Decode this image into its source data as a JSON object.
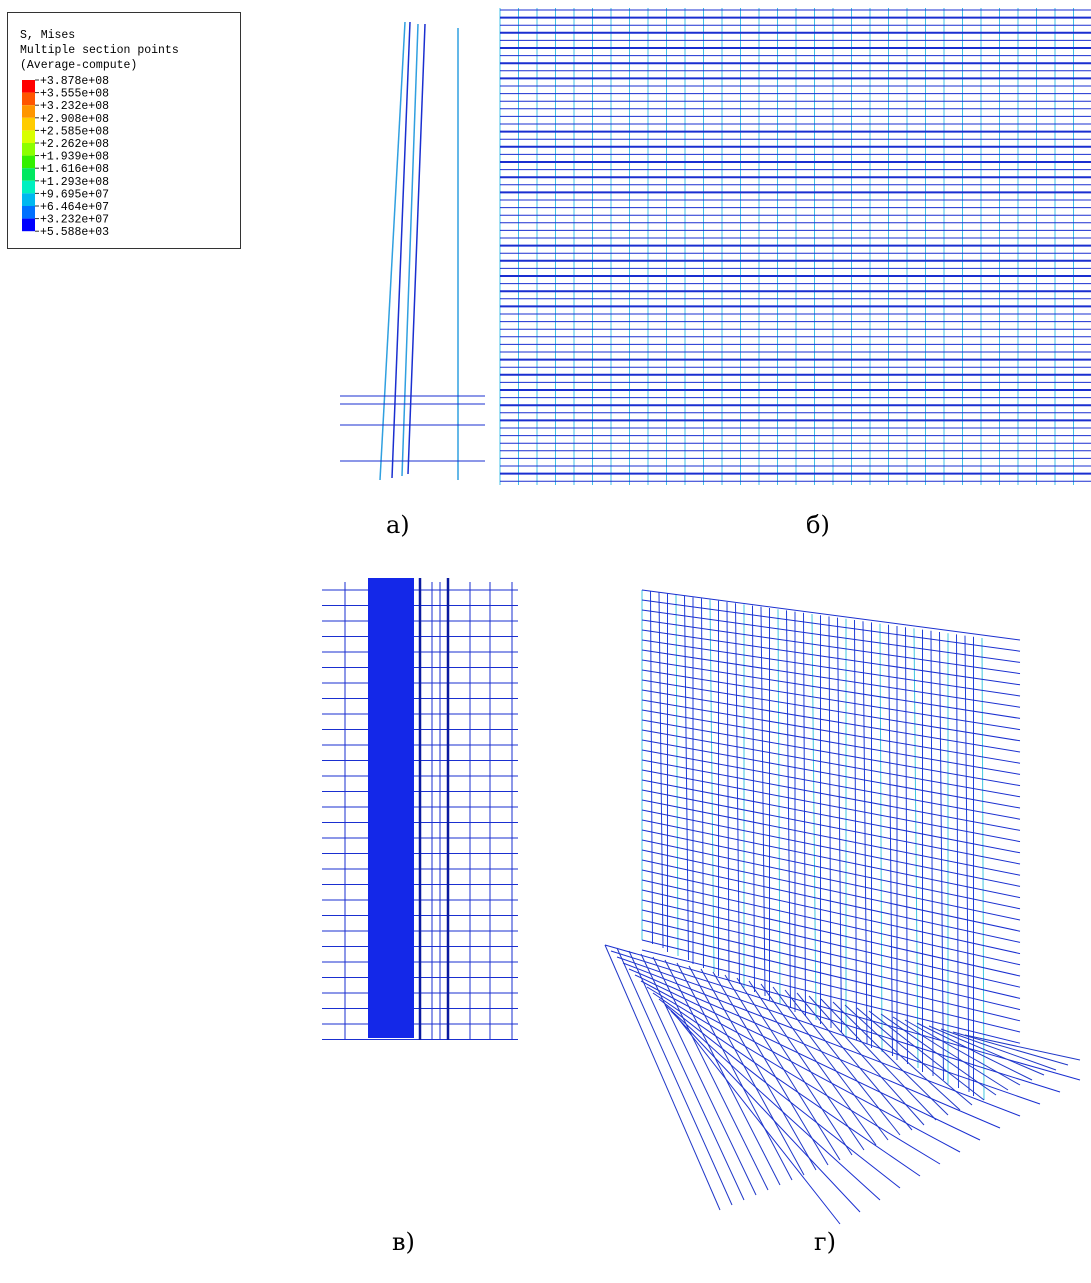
{
  "legend": {
    "title": "S, Mises",
    "subtitle": "Multiple section points",
    "note": "(Average-compute)",
    "levels": [
      "+3.878e+08",
      "+3.555e+08",
      "+3.232e+08",
      "+2.908e+08",
      "+2.585e+08",
      "+2.262e+08",
      "+1.939e+08",
      "+1.616e+08",
      "+1.293e+08",
      "+9.695e+07",
      "+6.464e+07",
      "+3.232e+07",
      "+5.588e+03"
    ],
    "colors": [
      "#ff0000",
      "#ff5500",
      "#ff9600",
      "#ffcc00",
      "#d8ff00",
      "#8cff00",
      "#33f000",
      "#00e860",
      "#00f0c0",
      "#00b8f0",
      "#0070ff",
      "#0000ff"
    ]
  },
  "captions": [
    "а)",
    "б)",
    "в)",
    "г)"
  ]
}
